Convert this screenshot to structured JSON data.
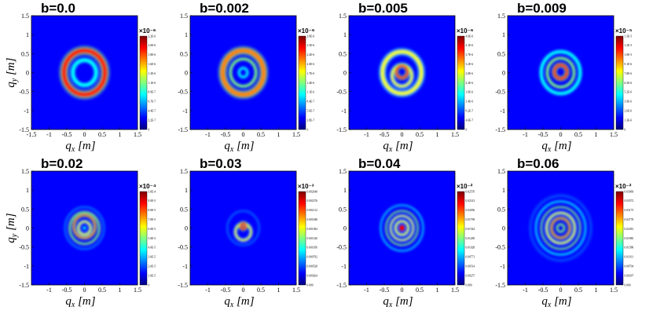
{
  "figure": {
    "colormap": [
      "#00007f",
      "#0000ff",
      "#007fff",
      "#00ffff",
      "#7fff7f",
      "#ffff00",
      "#ff7f00",
      "#ff0000",
      "#7f0000"
    ],
    "background_color": "#0000ff"
  },
  "chart_data": [
    {
      "type": "heatmap",
      "title": "b=0.0",
      "xlabel": "q_x [m]",
      "ylabel": "q_y [m]",
      "xlim": [
        -1.5,
        1.5
      ],
      "ylim": [
        -1.5,
        1.5
      ],
      "x_ticks": [
        "-1.5",
        "-1",
        "-0.5",
        "0",
        "0.5",
        "1",
        "1.5"
      ],
      "y_ticks": [
        "1.5",
        "1",
        "0.5",
        "0",
        "-0.5",
        "-1",
        "-1.5"
      ],
      "colorbar_exponent": "×10⁻⁶",
      "colorbar_ticks": [
        "2.2E-6",
        "2.0E-6",
        "1.8E-6",
        "1.6E-6",
        "1.3E-6",
        "1.1E-6",
        "8.9E-7",
        "6.7E-7",
        "4.4E-7",
        "2.2E-7",
        "0"
      ],
      "rings": [
        {
          "cx": 0,
          "cy": 0,
          "r": 0.58,
          "width": 0.15,
          "intensity": 1.0
        },
        {
          "cx": 0,
          "cy": 0,
          "r": 0.33,
          "width": 0.12,
          "intensity": 0.25
        }
      ]
    },
    {
      "type": "heatmap",
      "title": "b=0.002",
      "xlabel": "q_x [m]",
      "ylabel": "",
      "xlim": [
        -1.5,
        1.5
      ],
      "ylim": [
        -1.5,
        1.5
      ],
      "x_ticks": [
        "-1",
        "-0.5",
        "0",
        "0.5",
        "1",
        "1.5"
      ],
      "y_ticks": [
        "1.5",
        "1",
        "0.5",
        "0",
        "-0.5",
        "-1",
        "-1.5"
      ],
      "colorbar_exponent": "×10⁻⁶",
      "colorbar_ticks": [
        "2.8E-6",
        "2.5E-6",
        "2.2E-6",
        "2.0E-6",
        "1.7E-6",
        "1.4E-6",
        "1.1E-6",
        "8.4E-7",
        "5.6E-7",
        "2.8E-7",
        "0"
      ],
      "rings": [
        {
          "cx": 0,
          "cy": 0,
          "r": 0.58,
          "width": 0.14,
          "intensity": 0.85
        },
        {
          "cx": 0,
          "cy": 0,
          "r": 0.36,
          "width": 0.08,
          "intensity": 0.45
        },
        {
          "cx": 0,
          "cy": 0,
          "r": 0.12,
          "width": 0.07,
          "intensity": 0.4
        }
      ]
    },
    {
      "type": "heatmap",
      "title": "b=0.005",
      "xlabel": "q_x [m]",
      "ylabel": "",
      "xlim": [
        -1.5,
        1.5
      ],
      "ylim": [
        -1.5,
        1.5
      ],
      "x_ticks": [
        "-1",
        "-0.5",
        "0",
        "0.5",
        "1",
        "1.5"
      ],
      "y_ticks": [
        "1.5",
        "1",
        "0.5",
        "0",
        "-0.5",
        "-1",
        "-1.5"
      ],
      "colorbar_exponent": "×10⁻⁶",
      "colorbar_ticks": [
        "4.6E-6",
        "4.1E-6",
        "3.7E-6",
        "3.2E-6",
        "2.8E-6",
        "2.3E-6",
        "1.8E-6",
        "1.4E-6",
        "9.2E-7",
        "4.6E-7",
        "0"
      ],
      "rings": [
        {
          "cx": 0,
          "cy": 0,
          "r": 0.55,
          "width": 0.12,
          "intensity": 0.6
        },
        {
          "cx": 0,
          "cy": -0.08,
          "r": 0.28,
          "width": 0.08,
          "intensity": 0.7
        },
        {
          "cx": 0,
          "cy": 0.02,
          "r": 0.16,
          "width": 0.08,
          "intensity": 1.0
        }
      ]
    },
    {
      "type": "heatmap",
      "title": "b=0.009",
      "xlabel": "q_x [m]",
      "ylabel": "",
      "xlim": [
        -1.5,
        1.5
      ],
      "ylim": [
        -1.5,
        1.5
      ],
      "x_ticks": [
        "-1",
        "-0.5",
        "0",
        "0.5",
        "1",
        "1.5"
      ],
      "y_ticks": [
        "1.5",
        "1",
        "0.5",
        "0",
        "-0.5",
        "-1",
        "-1.5"
      ],
      "colorbar_exponent": "×10⁻⁵",
      "colorbar_ticks": [
        "1.3E-5",
        "1.2E-5",
        "1.0E-5",
        "9.1E-6",
        "7.8E-6",
        "6.5E-6",
        "5.2E-6",
        "3.9E-6",
        "2.6E-6",
        "1.3E-6",
        "0"
      ],
      "rings": [
        {
          "cx": 0,
          "cy": 0,
          "r": 0.55,
          "width": 0.1,
          "intensity": 0.35
        },
        {
          "cx": 0,
          "cy": 0,
          "r": 0.38,
          "width": 0.08,
          "intensity": 0.55
        },
        {
          "cx": 0,
          "cy": 0.02,
          "r": 0.18,
          "width": 0.09,
          "intensity": 1.0
        }
      ]
    },
    {
      "type": "heatmap",
      "title": "b=0.02",
      "xlabel": "q_x [m]",
      "ylabel": "q_y [m]",
      "xlim": [
        -1.5,
        1.5
      ],
      "ylim": [
        -1.5,
        1.5
      ],
      "x_ticks": [
        "-1",
        "-0.5",
        "0",
        "0.5",
        "1",
        "1.5"
      ],
      "y_ticks": [
        "1.5",
        "1",
        "0.5",
        "0",
        "-0.5",
        "-1",
        "-1.5"
      ],
      "colorbar_exponent": "×10⁻⁴",
      "colorbar_ticks": [
        "1.0E-4",
        "9.0E-5",
        "8.0E-5",
        "7.0E-5",
        "6.0E-5",
        "5.0E-5",
        "4.0E-5",
        "3.0E-5",
        "2.0E-5",
        "1.0E-5",
        "0"
      ],
      "rings": [
        {
          "cx": 0,
          "cy": 0,
          "r": 0.55,
          "width": 0.05,
          "intensity": 0.2
        },
        {
          "cx": 0,
          "cy": 0,
          "r": 0.42,
          "width": 0.06,
          "intensity": 0.5
        },
        {
          "cx": 0,
          "cy": 0.04,
          "r": 0.3,
          "width": 0.06,
          "intensity": 0.9
        },
        {
          "cx": 0,
          "cy": 0,
          "r": 0.17,
          "width": 0.06,
          "intensity": 0.6
        },
        {
          "cx": 0,
          "cy": 0,
          "r": 0.0,
          "width": 0.05,
          "intensity": 0.4
        }
      ]
    },
    {
      "type": "heatmap",
      "title": "b=0.03",
      "xlabel": "q_x [m]",
      "ylabel": "",
      "xlim": [
        -1.5,
        1.5
      ],
      "ylim": [
        -1.5,
        1.5
      ],
      "x_ticks": [
        "-1",
        "-0.5",
        "0",
        "0.5",
        "1",
        "1.5"
      ],
      "y_ticks": [
        "1.5",
        "1",
        "0.5",
        "0",
        "-0.5",
        "-1",
        "-1.5"
      ],
      "colorbar_exponent": "×10⁻³",
      "colorbar_ticks": [
        "0.002640",
        "0.002376",
        "0.002112",
        "0.001848",
        "0.001584",
        "0.001320",
        "0.001056",
        "0.000792",
        "0.000528",
        "0.000264",
        "0.000"
      ],
      "rings": [
        {
          "cx": 0,
          "cy": 0,
          "r": 0.45,
          "width": 0.04,
          "intensity": 0.2
        },
        {
          "cx": 0,
          "cy": -0.1,
          "r": 0.22,
          "width": 0.06,
          "intensity": 0.6
        },
        {
          "cx": 0,
          "cy": 0.05,
          "r": 0.07,
          "width": 0.08,
          "intensity": 1.0
        }
      ]
    },
    {
      "type": "heatmap",
      "title": "b=0.04",
      "xlabel": "q_x [m]",
      "ylabel": "",
      "xlim": [
        -1.5,
        1.5
      ],
      "ylim": [
        -1.5,
        1.5
      ],
      "x_ticks": [
        "-1",
        "-0.5",
        "0",
        "0.5",
        "1",
        "1.5"
      ],
      "y_ticks": [
        "1.5",
        "1",
        "0.5",
        "0",
        "-0.5",
        "-1",
        "-1.5"
      ],
      "colorbar_exponent": "×10⁻²",
      "colorbar_ticks": [
        "0.02570",
        "0.02313",
        "0.02056",
        "0.01799",
        "0.01542",
        "0.01285",
        "0.01028",
        "0.00771",
        "0.00514",
        "0.00257",
        "0.000"
      ],
      "rings": [
        {
          "cx": 0,
          "cy": 0,
          "r": 0.6,
          "width": 0.04,
          "intensity": 0.3
        },
        {
          "cx": 0,
          "cy": 0,
          "r": 0.45,
          "width": 0.05,
          "intensity": 0.45
        },
        {
          "cx": 0,
          "cy": 0,
          "r": 0.32,
          "width": 0.05,
          "intensity": 0.6
        },
        {
          "cx": 0,
          "cy": 0,
          "r": 0.18,
          "width": 0.06,
          "intensity": 0.7
        },
        {
          "cx": 0,
          "cy": 0,
          "r": 0.0,
          "width": 0.08,
          "intensity": 1.0
        }
      ]
    },
    {
      "type": "heatmap",
      "title": "b=0.06",
      "xlabel": "q_x [m]",
      "ylabel": "",
      "xlim": [
        -1.5,
        1.5
      ],
      "ylim": [
        -1.5,
        1.5
      ],
      "x_ticks": [
        "-1",
        "-0.5",
        "0",
        "0.5",
        "1",
        "1.5"
      ],
      "y_ticks": [
        "1.5",
        "1",
        "0.5",
        "0",
        "-0.5",
        "-1",
        "-1.5"
      ],
      "colorbar_exponent": "×10⁻²",
      "colorbar_ticks": [
        "0.03969",
        "0.03572",
        "0.03175",
        "0.02778",
        "0.02381",
        "0.01985",
        "0.01588",
        "0.01191",
        "0.00794",
        "0.00397",
        "0.000"
      ],
      "rings": [
        {
          "cx": 0,
          "cy": 0,
          "r": 0.85,
          "width": 0.04,
          "intensity": 0.2
        },
        {
          "cx": 0,
          "cy": 0,
          "r": 0.7,
          "width": 0.05,
          "intensity": 0.35
        },
        {
          "cx": 0,
          "cy": 0,
          "r": 0.55,
          "width": 0.05,
          "intensity": 0.5
        },
        {
          "cx": 0,
          "cy": 0,
          "r": 0.4,
          "width": 0.06,
          "intensity": 0.6
        },
        {
          "cx": 0,
          "cy": 0,
          "r": 0.26,
          "width": 0.06,
          "intensity": 0.9
        },
        {
          "cx": 0,
          "cy": 0,
          "r": 0.1,
          "width": 0.06,
          "intensity": 0.45
        }
      ]
    }
  ]
}
